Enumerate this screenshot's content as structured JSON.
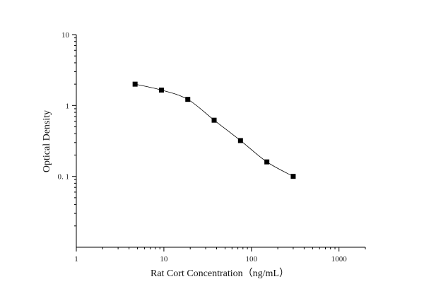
{
  "chart_data": {
    "type": "scatter",
    "title": "",
    "xlabel": "Rat Cort Concentration（ng/mL）",
    "ylabel": "Optical Density",
    "x_scale": "log",
    "y_scale": "log",
    "xlim": [
      1,
      2000
    ],
    "ylim": [
      0.01,
      10
    ],
    "x_ticks": [
      1,
      10,
      100,
      1000
    ],
    "x_tick_labels": [
      "1",
      "10",
      "100",
      "1000"
    ],
    "y_ticks": [
      0.1,
      1,
      10
    ],
    "y_tick_labels": [
      "0. 1",
      "1",
      "10"
    ],
    "grid": false,
    "legend": "none",
    "series": [
      {
        "marker": "square",
        "connected_by_smooth_line": true,
        "x": [
          4.69,
          9.38,
          18.75,
          37.5,
          75,
          150,
          300
        ],
        "y": [
          2.0,
          1.65,
          1.22,
          0.62,
          0.32,
          0.16,
          0.1
        ]
      }
    ]
  },
  "colors": {
    "marker": "#000000",
    "curve": "#000000",
    "axis": "#000000"
  }
}
